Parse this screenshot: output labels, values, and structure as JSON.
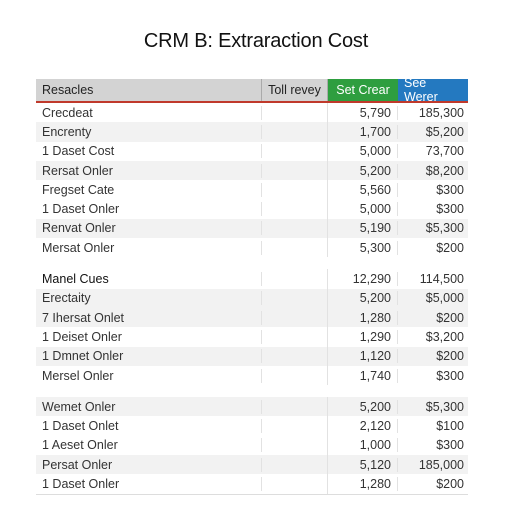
{
  "title": "CRM B: Extraraction Cost",
  "header": {
    "col1": "Resacles",
    "col2": "Toll revey",
    "col3": "Set Crear",
    "col4": "See Werer"
  },
  "rows": [
    {
      "label": "Crecdeat",
      "v3": "5,790",
      "v4": "185,300",
      "shade": false
    },
    {
      "label": "Encrenty",
      "v3": "1,700",
      "v4": "$5,200",
      "shade": true
    },
    {
      "label": "1 Daset Cost",
      "v3": "5,000",
      "v4": "73,700",
      "shade": false
    },
    {
      "label": "Rersat Onler",
      "v3": "5,200",
      "v4": "$8,200",
      "shade": true
    },
    {
      "label": "Fregset Cate",
      "v3": "5,560",
      "v4": "$300",
      "shade": false
    },
    {
      "label": "1 Daset Onler",
      "v3": "5,000",
      "v4": "$300",
      "shade": false
    },
    {
      "label": "Renvat Onler",
      "v3": "5,190",
      "v4": "$5,300",
      "shade": true
    },
    {
      "label": "Mersat Onler",
      "v3": "5,300",
      "v4": "$200",
      "shade": false
    },
    {
      "gap": true
    },
    {
      "label": "Manel Cues",
      "v3": "12,290",
      "v4": "114,500",
      "shade": false,
      "bold": true
    },
    {
      "label": "Erectaity",
      "v3": "5,200",
      "v4": "$5,000",
      "shade": true
    },
    {
      "label": "7 Ihersat Onlet",
      "v3": "1,280",
      "v4": "$200",
      "shade": true
    },
    {
      "label": "1 Deiset Onler",
      "v3": "1,290",
      "v4": "$3,200",
      "shade": false
    },
    {
      "label": "1 Dmnet Onler",
      "v3": "1,120",
      "v4": "$200",
      "shade": true
    },
    {
      "label": "Mersel Onler",
      "v3": "1,740",
      "v4": "$300",
      "shade": false
    },
    {
      "gap": true
    },
    {
      "label": "Wemet Onler",
      "v3": "5,200",
      "v4": "$5,300",
      "shade": true
    },
    {
      "label": "1 Daset Onlet",
      "v3": "2,120",
      "v4": "$100",
      "shade": false
    },
    {
      "label": "1 Aeset Onler",
      "v3": "1,000",
      "v4": "$300",
      "shade": false
    },
    {
      "label": "Persat Onler",
      "v3": "5,120",
      "v4": "185,000",
      "shade": true
    },
    {
      "label": "1 Daset Onler",
      "v3": "1,280",
      "v4": "$200",
      "shade": false
    }
  ]
}
